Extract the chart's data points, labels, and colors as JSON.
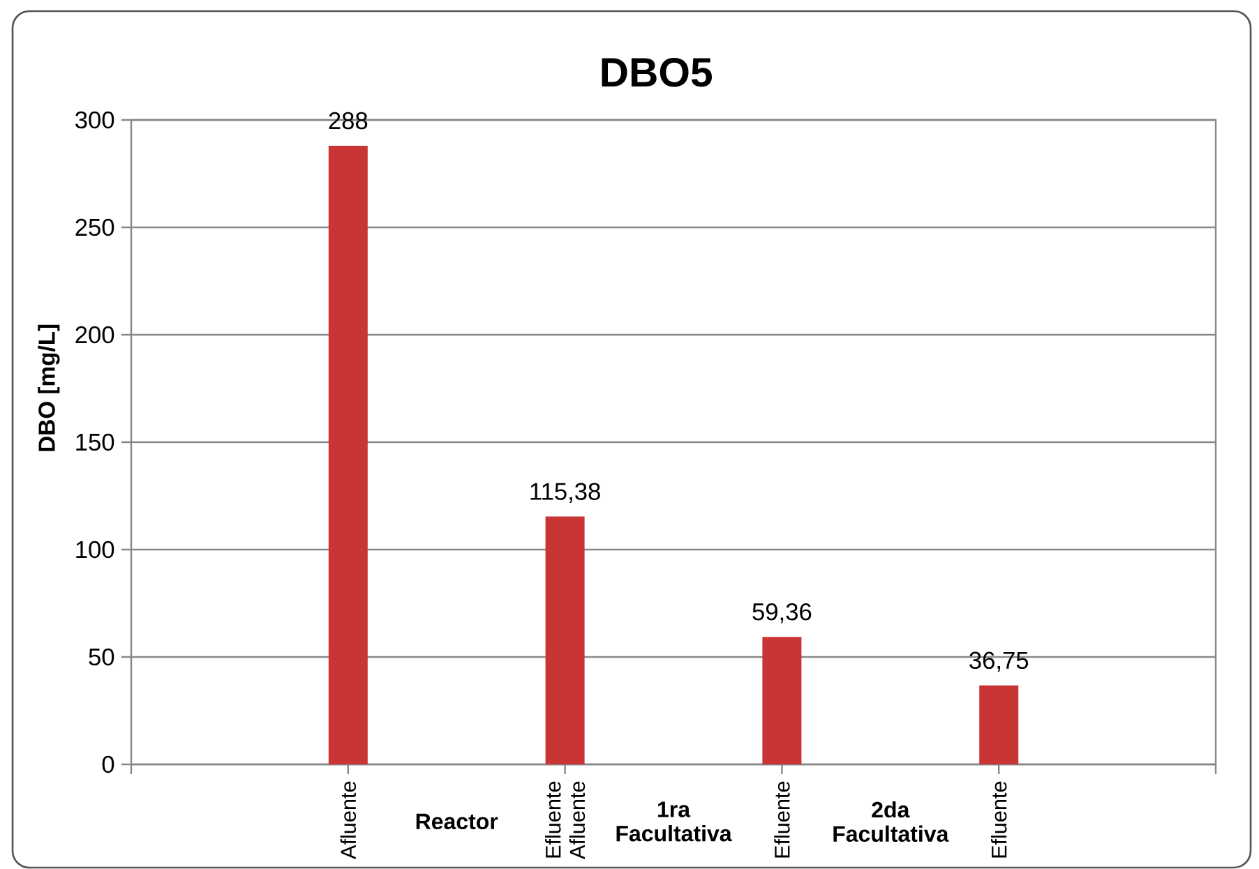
{
  "chart_data": {
    "type": "bar",
    "title": "DBO5",
    "ylabel": "DBO [mg/L]",
    "categories": [
      "Afluente",
      "Efluente Afluente",
      "Efluente",
      "Efluente"
    ],
    "values": [
      288,
      115.38,
      59.36,
      36.75
    ],
    "value_labels": [
      "288",
      "115,38",
      "59,36",
      "36,75"
    ],
    "color": "#c93434",
    "ylim": [
      0,
      300
    ],
    "yticks": [
      0,
      50,
      100,
      150,
      200,
      250,
      300
    ],
    "grid": "y",
    "annotations": [
      "Reactor",
      "1ra Facultativa",
      "2da Facultativa"
    ]
  }
}
